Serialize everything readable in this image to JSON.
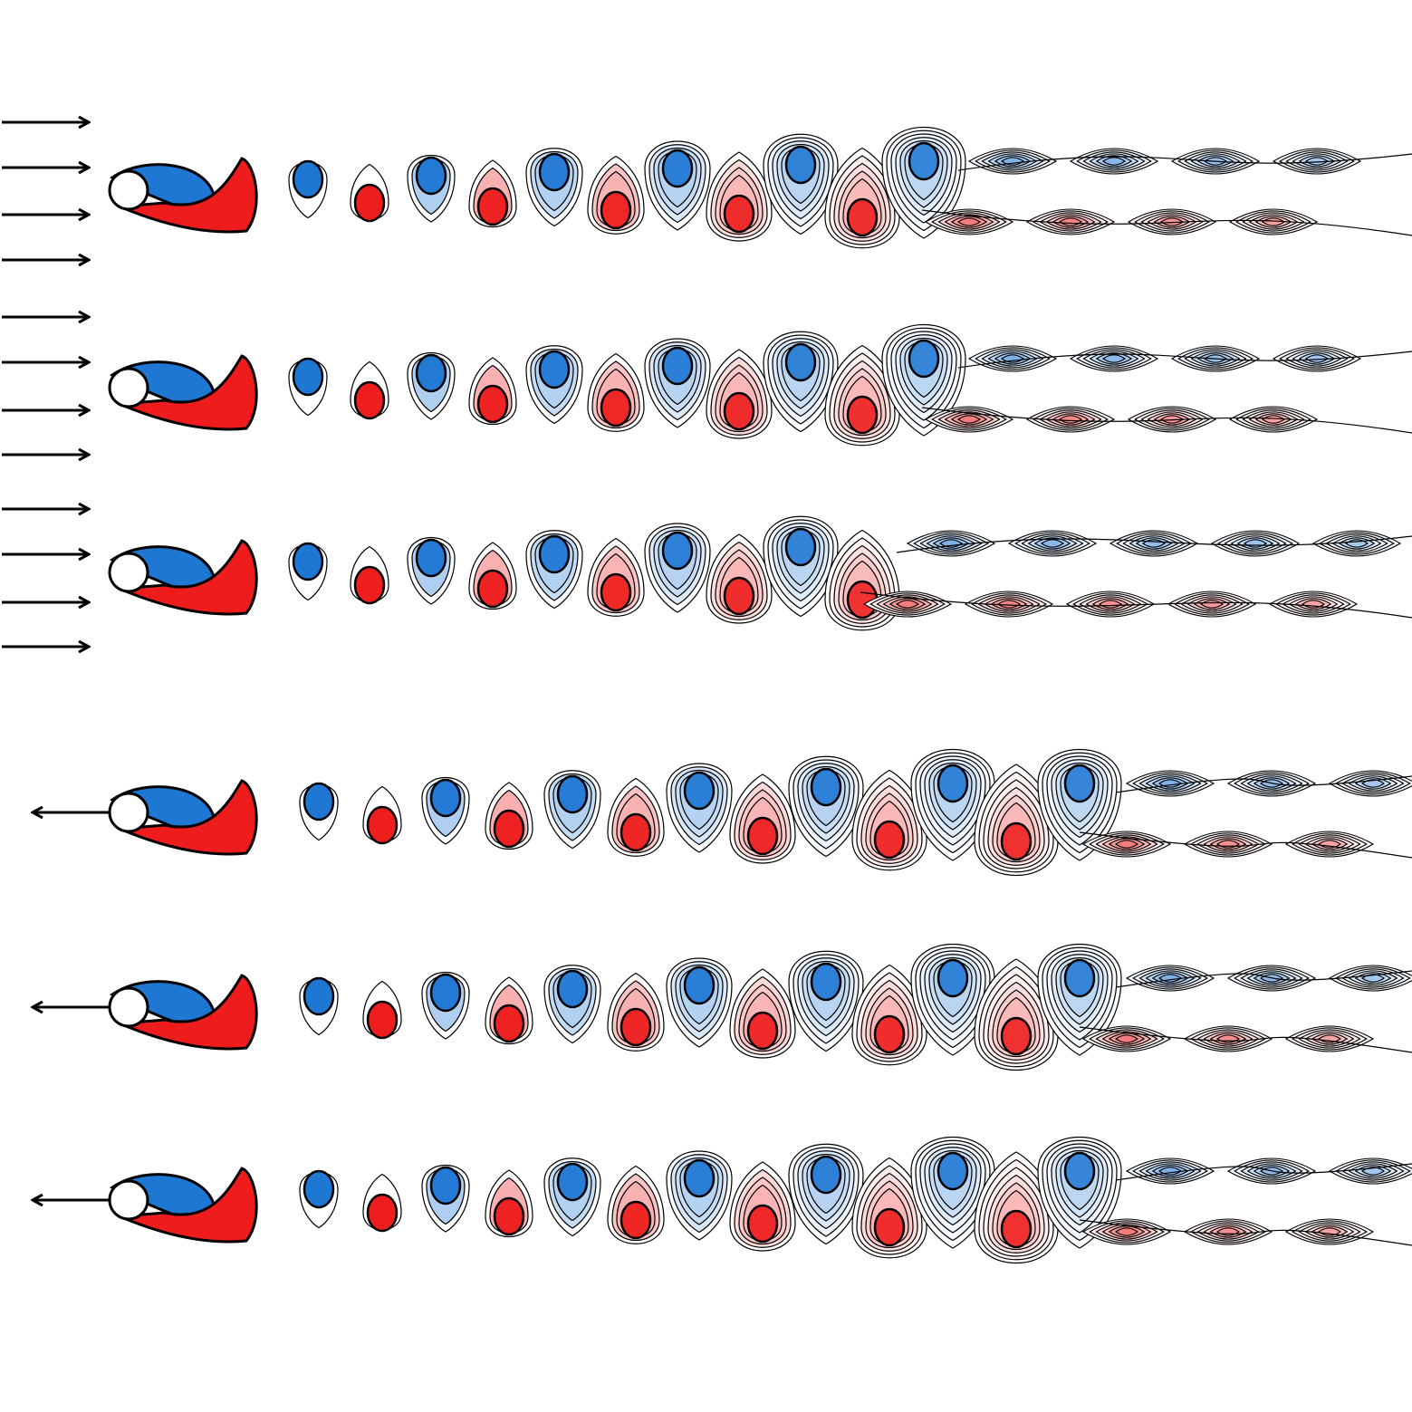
{
  "colors": {
    "positive_vorticity": "#ee1c1c",
    "negative_vorticity": "#1f77d4",
    "contour_line": "#000000",
    "cylinder": "#ffffff",
    "background": "#ffffff"
  },
  "panels": [
    {
      "id": "panel-1",
      "flow_indicator": "uniform-inflow-arrows",
      "arrow_direction": "right"
    },
    {
      "id": "panel-2",
      "flow_indicator": "uniform-inflow-arrows",
      "arrow_direction": "right"
    },
    {
      "id": "panel-3",
      "flow_indicator": "uniform-inflow-arrows",
      "arrow_direction": "right"
    },
    {
      "id": "panel-4",
      "flow_indicator": "cylinder-motion-arrow",
      "arrow_direction": "left"
    },
    {
      "id": "panel-5",
      "flow_indicator": "cylinder-motion-arrow",
      "arrow_direction": "left"
    },
    {
      "id": "panel-6",
      "flow_indicator": "cylinder-motion-arrow",
      "arrow_direction": "left"
    }
  ]
}
